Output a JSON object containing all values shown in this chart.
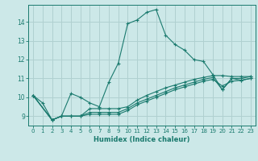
{
  "xlabel": "Humidex (Indice chaleur)",
  "bg_color": "#cce8e8",
  "grid_color": "#b0d0d0",
  "line_color": "#1a7a6e",
  "xlim": [
    -0.5,
    23.5
  ],
  "ylim": [
    8.5,
    14.9
  ],
  "xticks": [
    0,
    1,
    2,
    3,
    4,
    5,
    6,
    7,
    8,
    9,
    10,
    11,
    12,
    13,
    14,
    15,
    16,
    17,
    18,
    19,
    20,
    21,
    22,
    23
  ],
  "yticks": [
    9,
    10,
    11,
    12,
    13,
    14
  ],
  "lines": [
    {
      "x": [
        0,
        1,
        2,
        3,
        4,
        5,
        6,
        7,
        8,
        9,
        10,
        11,
        12,
        13,
        14,
        15,
        16,
        17,
        18,
        19,
        20,
        21,
        22,
        23
      ],
      "y": [
        10.1,
        9.7,
        8.8,
        9.0,
        10.2,
        10.0,
        9.7,
        9.5,
        10.8,
        11.8,
        13.9,
        14.1,
        14.5,
        14.65,
        13.3,
        12.8,
        12.5,
        12.0,
        11.9,
        11.2,
        10.4,
        11.0,
        11.0,
        11.1
      ]
    },
    {
      "x": [
        0,
        2,
        3,
        4,
        5,
        6,
        7,
        8,
        9,
        10,
        11,
        12,
        13,
        14,
        15,
        16,
        17,
        18,
        19,
        20,
        21,
        22,
        23
      ],
      "y": [
        10.1,
        8.8,
        9.0,
        9.0,
        9.0,
        9.4,
        9.4,
        9.4,
        9.4,
        9.5,
        9.85,
        10.1,
        10.3,
        10.5,
        10.65,
        10.8,
        10.95,
        11.05,
        11.15,
        11.15,
        11.1,
        11.1,
        11.1
      ]
    },
    {
      "x": [
        0,
        2,
        3,
        4,
        5,
        6,
        7,
        8,
        9,
        10,
        11,
        12,
        13,
        14,
        15,
        16,
        17,
        18,
        19,
        20,
        21,
        22,
        23
      ],
      "y": [
        10.1,
        8.8,
        9.0,
        9.0,
        9.0,
        9.2,
        9.2,
        9.2,
        9.2,
        9.4,
        9.7,
        9.9,
        10.1,
        10.3,
        10.5,
        10.65,
        10.8,
        10.95,
        11.05,
        10.4,
        11.0,
        10.9,
        11.0
      ]
    },
    {
      "x": [
        0,
        2,
        3,
        4,
        5,
        6,
        7,
        8,
        9,
        10,
        11,
        12,
        13,
        14,
        15,
        16,
        17,
        18,
        19,
        20,
        21,
        22,
        23
      ],
      "y": [
        10.1,
        8.8,
        9.0,
        9.0,
        9.0,
        9.1,
        9.1,
        9.1,
        9.1,
        9.3,
        9.6,
        9.8,
        10.0,
        10.2,
        10.4,
        10.55,
        10.7,
        10.85,
        10.95,
        10.6,
        10.85,
        10.9,
        11.0
      ]
    }
  ]
}
